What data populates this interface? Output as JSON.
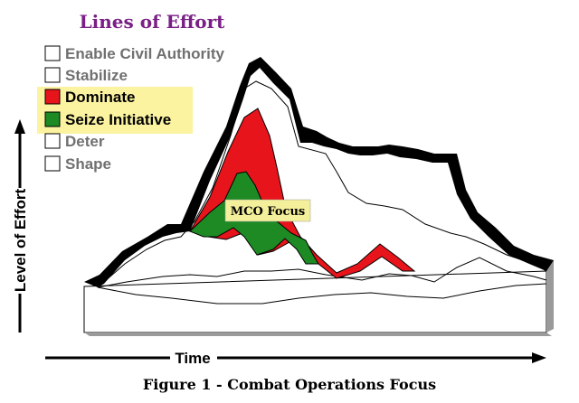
{
  "diagram": {
    "title": "Lines of Effort",
    "legend": [
      {
        "label": "Enable Civil Authority",
        "color": "#ffffff",
        "highlight": false
      },
      {
        "label": "Stabilize",
        "color": "#ffffff",
        "highlight": false
      },
      {
        "label": "Dominate",
        "color": "#e8141b",
        "highlight": true
      },
      {
        "label": "Seize Initiative",
        "color": "#1d8a24",
        "highlight": true
      },
      {
        "label": "Deter",
        "color": "#ffffff",
        "highlight": false
      },
      {
        "label": "Shape",
        "color": "#ffffff",
        "highlight": false
      }
    ],
    "y_axis_label": "Level of Effort",
    "x_axis_label": "Time",
    "callout": "MCO Focus",
    "caption": "Figure 1 - Combat Operations Focus",
    "colors": {
      "title": "#7a1f86",
      "highlight": "#fbf3a0",
      "dominate": "#e8141b",
      "seize_initiative": "#1d8a24",
      "band_edge": "#000000",
      "base_shade": "#9a9a9a",
      "callout_bg": "#f4ef9a"
    }
  }
}
